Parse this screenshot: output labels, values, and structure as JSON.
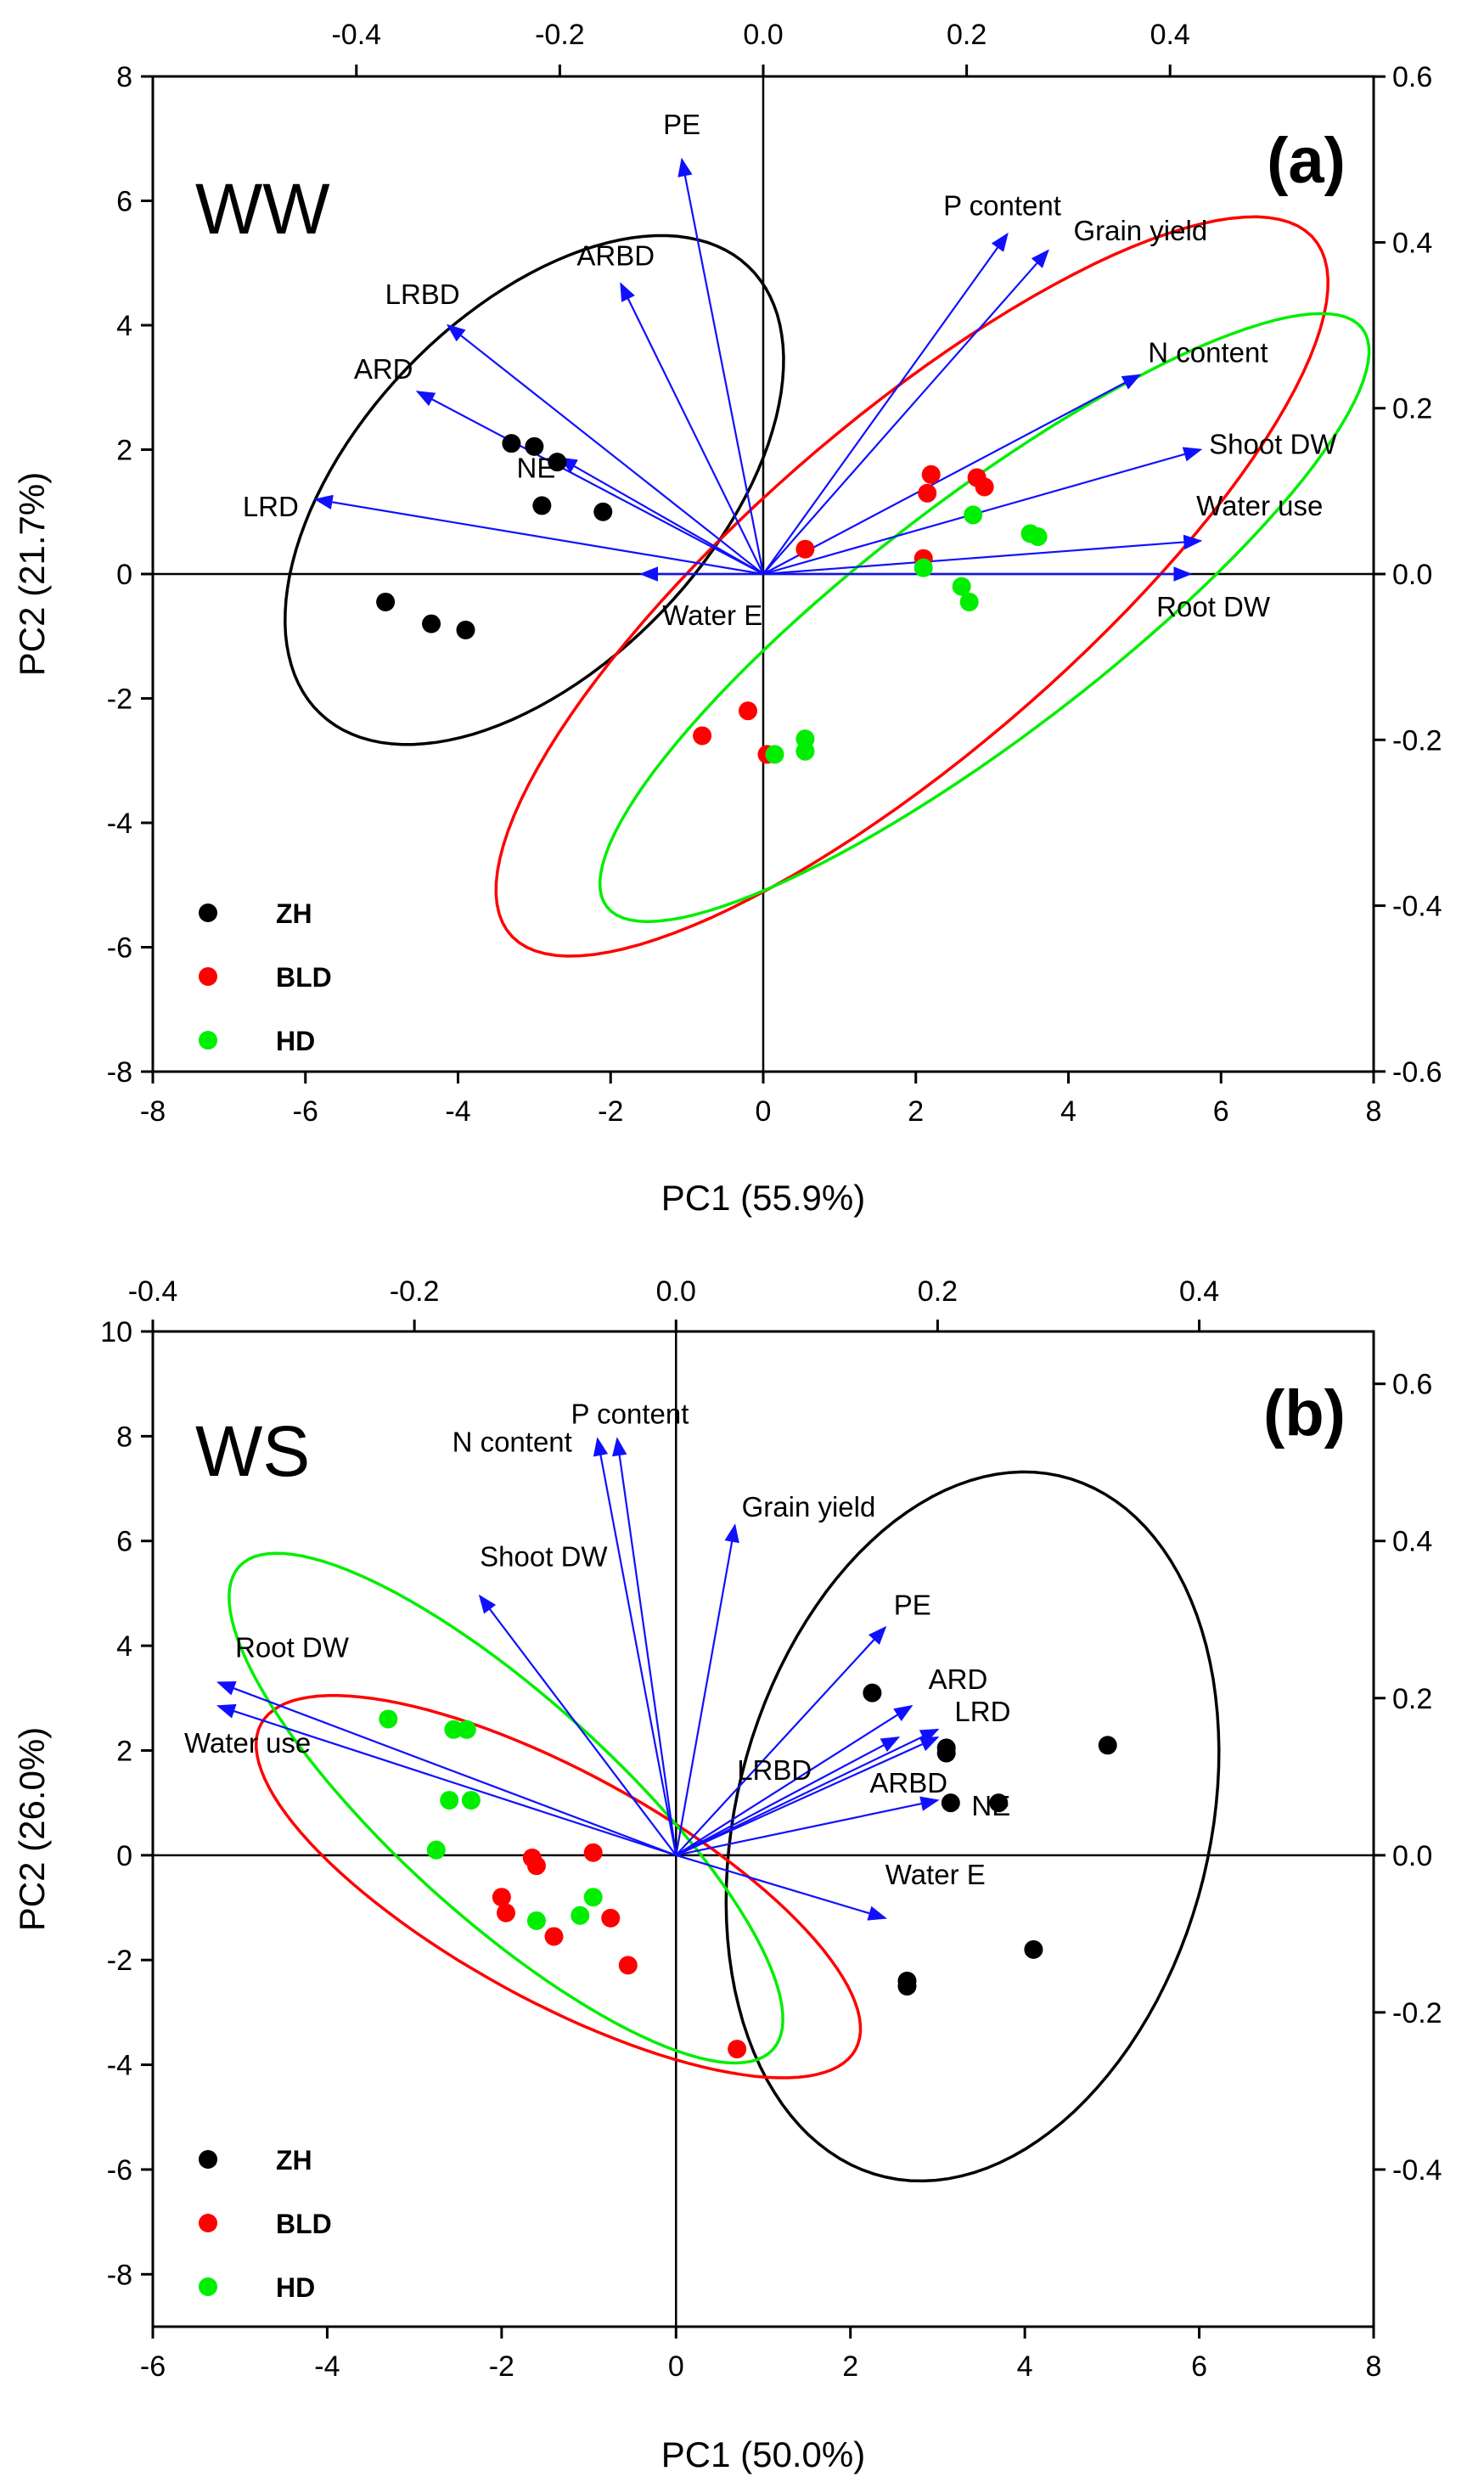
{
  "colors": {
    "ZH": "#000000",
    "BLD": "#ff0000",
    "HD": "#00ee00",
    "arrow": "#1010ff",
    "axis": "#000000"
  },
  "chart_data": [
    {
      "type": "scatter",
      "panel_label": "(a)",
      "treatment_label": "WW",
      "xlabel": "PC1 (55.9%)",
      "ylabel": "PC2 (21.7%)",
      "xlim": [
        -8,
        8
      ],
      "ylim": [
        -8,
        8
      ],
      "x_ticks": [
        "-8",
        "-6",
        "-4",
        "-2",
        "0",
        "2",
        "4",
        "6",
        "8"
      ],
      "y_ticks": [
        "-8",
        "-6",
        "-4",
        "-2",
        "0",
        "2",
        "4",
        "6",
        "8"
      ],
      "top_ticks": [
        "-0.4",
        "-0.2",
        "0.0",
        "0.2",
        "0.4"
      ],
      "right_ticks": [
        "-0.6",
        "-0.4",
        "-0.2",
        "0.0",
        "0.2",
        "0.4",
        "0.6"
      ],
      "loading_scale": 13.33,
      "legend": [
        "ZH",
        "BLD",
        "HD"
      ],
      "series": [
        {
          "name": "ZH",
          "points": [
            [
              -3.3,
              2.1
            ],
            [
              -3.0,
              2.05
            ],
            [
              -2.7,
              1.8
            ],
            [
              -2.9,
              1.1
            ],
            [
              -2.1,
              1.0
            ],
            [
              -4.95,
              -0.45
            ],
            [
              -4.35,
              -0.8
            ],
            [
              -3.9,
              -0.9
            ]
          ]
        },
        {
          "name": "BLD",
          "points": [
            [
              2.2,
              1.6
            ],
            [
              2.15,
              1.3
            ],
            [
              2.8,
              1.55
            ],
            [
              2.9,
              1.4
            ],
            [
              0.55,
              0.4
            ],
            [
              2.1,
              0.25
            ],
            [
              -0.8,
              -2.6
            ],
            [
              -0.2,
              -2.2
            ],
            [
              0.05,
              -2.9
            ]
          ]
        },
        {
          "name": "HD",
          "points": [
            [
              2.75,
              0.95
            ],
            [
              3.5,
              0.65
            ],
            [
              3.6,
              0.6
            ],
            [
              2.1,
              0.1
            ],
            [
              2.6,
              -0.2
            ],
            [
              2.7,
              -0.45
            ],
            [
              0.55,
              -2.65
            ],
            [
              0.55,
              -2.85
            ],
            [
              0.15,
              -2.9
            ]
          ]
        }
      ],
      "ellipses": [
        {
          "group": "ZH",
          "cx": -3.0,
          "cy": 1.35,
          "rx": 4.6,
          "ry": 2.5,
          "angle": 57
        },
        {
          "group": "BLD",
          "cx": 1.95,
          "cy": -0.2,
          "rx": 7.7,
          "ry": 2.4,
          "angle": 48
        },
        {
          "group": "HD",
          "cx": 2.9,
          "cy": -0.7,
          "rx": 6.8,
          "ry": 1.75,
          "angle": 44
        }
      ],
      "loadings": [
        {
          "label": "PE",
          "x": -0.08,
          "y": 0.5
        },
        {
          "label": "ARBD",
          "x": -0.14,
          "y": 0.35
        },
        {
          "label": "LRBD",
          "x": -0.31,
          "y": 0.3
        },
        {
          "label": "ARD",
          "x": -0.34,
          "y": 0.22
        },
        {
          "label": "NE",
          "x": -0.2,
          "y": 0.14
        },
        {
          "label": "LRD",
          "x": -0.44,
          "y": 0.09
        },
        {
          "label": "Water E",
          "x": -0.12,
          "y": 0.0
        },
        {
          "label": "P content",
          "x": 0.24,
          "y": 0.41
        },
        {
          "label": "Grain yield",
          "x": 0.28,
          "y": 0.39
        },
        {
          "label": "N content",
          "x": 0.37,
          "y": 0.24
        },
        {
          "label": "Shoot DW",
          "x": 0.43,
          "y": 0.15
        },
        {
          "label": "Water use",
          "x": 0.43,
          "y": 0.04
        },
        {
          "label": "Root DW",
          "x": 0.42,
          "y": 0.0
        }
      ]
    },
    {
      "type": "scatter",
      "panel_label": "(b)",
      "treatment_label": "WS",
      "xlabel": "PC1 (50.0%)",
      "ylabel": "PC2 (26.0%)",
      "xlim": [
        -6,
        8
      ],
      "ylim": [
        -9,
        10
      ],
      "x_ticks": [
        "-6",
        "-4",
        "-2",
        "0",
        "2",
        "4",
        "6",
        "8"
      ],
      "y_ticks": [
        "-8",
        "-6",
        "-4",
        "-2",
        "0",
        "2",
        "4",
        "6",
        "8",
        "10"
      ],
      "top_ticks": [
        "-0.4",
        "-0.2",
        "0.0",
        "0.2",
        "0.4"
      ],
      "right_ticks": [
        "-0.4",
        "-0.2",
        "0.0",
        "0.2",
        "0.4",
        "0.6"
      ],
      "loading_scale": 15.0,
      "legend": [
        "ZH",
        "BLD",
        "HD"
      ],
      "series": [
        {
          "name": "ZH",
          "points": [
            [
              2.25,
              3.1
            ],
            [
              3.1,
              2.05
            ],
            [
              3.1,
              1.95
            ],
            [
              3.15,
              1.0
            ],
            [
              3.7,
              1.0
            ],
            [
              4.95,
              2.1
            ],
            [
              4.1,
              -1.8
            ],
            [
              2.65,
              -2.4
            ],
            [
              2.65,
              -2.5
            ]
          ]
        },
        {
          "name": "BLD",
          "points": [
            [
              -1.65,
              -0.05
            ],
            [
              -1.6,
              -0.2
            ],
            [
              -0.95,
              0.05
            ],
            [
              -2.0,
              -0.8
            ],
            [
              -1.95,
              -1.1
            ],
            [
              -0.75,
              -1.2
            ],
            [
              -1.4,
              -1.55
            ],
            [
              -0.55,
              -2.1
            ],
            [
              0.7,
              -3.7
            ]
          ]
        },
        {
          "name": "HD",
          "points": [
            [
              -3.3,
              2.6
            ],
            [
              -2.55,
              2.4
            ],
            [
              -2.4,
              2.4
            ],
            [
              -2.6,
              1.05
            ],
            [
              -2.35,
              1.05
            ],
            [
              -2.75,
              0.1
            ],
            [
              -1.6,
              -1.25
            ],
            [
              -1.1,
              -1.15
            ],
            [
              -0.95,
              -0.8
            ]
          ]
        }
      ],
      "ellipses": [
        {
          "group": "ZH",
          "cx": 3.4,
          "cy": 0.55,
          "rx": 6.8,
          "ry": 2.75,
          "angle": 84
        },
        {
          "group": "BLD",
          "cx": -1.35,
          "cy": -0.6,
          "rx": 4.7,
          "ry": 1.8,
          "angle": -47
        },
        {
          "group": "HD",
          "cx": -1.95,
          "cy": 0.9,
          "rx": 5.6,
          "ry": 1.55,
          "angle": -59
        }
      ],
      "loadings": [
        {
          "label": "N content",
          "x": -0.06,
          "y": 0.53
        },
        {
          "label": "P content",
          "x": -0.045,
          "y": 0.53
        },
        {
          "label": "Grain yield",
          "x": 0.045,
          "y": 0.42
        },
        {
          "label": "Shoot DW",
          "x": -0.15,
          "y": 0.33
        },
        {
          "label": "Root DW",
          "x": -0.35,
          "y": 0.22
        },
        {
          "label": "Water use",
          "x": -0.35,
          "y": 0.19
        },
        {
          "label": "PE",
          "x": 0.16,
          "y": 0.29
        },
        {
          "label": "ARD",
          "x": 0.18,
          "y": 0.19
        },
        {
          "label": "LRBD",
          "x": 0.17,
          "y": 0.15
        },
        {
          "label": "LRD",
          "x": 0.2,
          "y": 0.16
        },
        {
          "label": "ARBD",
          "x": 0.2,
          "y": 0.15
        },
        {
          "label": "NE",
          "x": 0.2,
          "y": 0.07
        },
        {
          "label": "Water E",
          "x": 0.16,
          "y": -0.08
        }
      ]
    }
  ]
}
